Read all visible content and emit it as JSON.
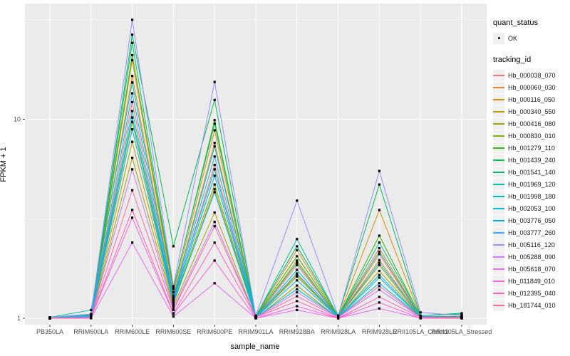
{
  "legend": {
    "quant_status_title": "quant_status",
    "ok_label": "OK",
    "tracking_title": "tracking_id"
  },
  "chart_data": {
    "type": "line",
    "title": "",
    "xlabel": "sample_name",
    "ylabel": "FPKM + 1",
    "y_scale": "log10",
    "ylim": [
      0.97,
      33
    ],
    "y_ticks": [
      1,
      10
    ],
    "y_tick_labels": [
      "1",
      "10"
    ],
    "y_minor_ticks": [
      3.1623,
      31.623
    ],
    "grid": "on",
    "legend_position": "right",
    "point_label": "OK",
    "x_categories": [
      "PB350LA",
      "RRIM600LA",
      "RRIM600LE",
      "RRIM600SE",
      "RRIM600PE",
      "RRIM901LA",
      "RRIM928BA",
      "RRIM928LA",
      "RRIM928LE",
      "RRII105LA_Control",
      "RRII105LA_Stressed"
    ],
    "series": [
      {
        "name": "Hb_000038_070",
        "color": "#F8766D",
        "values": [
          1.0,
          1.02,
          12.2,
          1.22,
          5.9,
          1.01,
          1.85,
          1.01,
          2.1,
          1.01,
          1.01
        ]
      },
      {
        "name": "Hb_000060_030",
        "color": "#EA8331",
        "values": [
          1.0,
          1.03,
          16.5,
          1.3,
          7.6,
          1.02,
          2.2,
          1.02,
          2.25,
          1.02,
          1.01
        ]
      },
      {
        "name": "Hb_000116_050",
        "color": "#D89000",
        "values": [
          1.0,
          1.02,
          19.8,
          1.35,
          8.8,
          1.01,
          1.95,
          1.01,
          3.5,
          1.02,
          1.02
        ]
      },
      {
        "name": "Hb_000340_550",
        "color": "#C09B00",
        "values": [
          1.0,
          1.01,
          7.7,
          1.18,
          4.45,
          1.01,
          1.65,
          1.01,
          1.96,
          1.01,
          1.01
        ]
      },
      {
        "name": "Hb_000416_080",
        "color": "#A3A500",
        "values": [
          1.0,
          1.01,
          6.4,
          1.15,
          3.4,
          1.0,
          1.46,
          1.0,
          1.73,
          1.01,
          1.0
        ]
      },
      {
        "name": "Hb_000830_010",
        "color": "#7CAE00",
        "values": [
          1.0,
          1.02,
          9.7,
          1.2,
          4.7,
          1.01,
          1.62,
          1.01,
          1.85,
          1.01,
          1.01
        ]
      },
      {
        "name": "Hb_001279_110",
        "color": "#39B600",
        "values": [
          1.0,
          1.04,
          21.0,
          1.4,
          9.9,
          1.02,
          2.05,
          1.02,
          2.6,
          1.02,
          1.02
        ]
      },
      {
        "name": "Hb_001439_240",
        "color": "#00BB4E",
        "values": [
          1.01,
          1.05,
          26.6,
          2.3,
          12.5,
          1.03,
          2.3,
          1.03,
          4.7,
          1.03,
          1.06
        ]
      },
      {
        "name": "Hb_001541_140",
        "color": "#00BF7D",
        "values": [
          1.0,
          1.04,
          24.2,
          1.42,
          9.5,
          1.02,
          1.9,
          1.02,
          2.16,
          1.02,
          1.02
        ]
      },
      {
        "name": "Hb_001969_120",
        "color": "#00C1A3",
        "values": [
          1.01,
          1.1,
          15.3,
          1.28,
          7.3,
          1.02,
          2.5,
          1.02,
          2.4,
          1.03,
          1.05
        ]
      },
      {
        "name": "Hb_001998_180",
        "color": "#00BFC4",
        "values": [
          1.0,
          1.03,
          11.0,
          1.25,
          5.6,
          1.01,
          1.75,
          1.01,
          1.6,
          1.01,
          1.01
        ]
      },
      {
        "name": "Hb_002053_100",
        "color": "#00BAE0",
        "values": [
          1.0,
          1.02,
          8.9,
          1.2,
          4.3,
          1.01,
          1.4,
          1.01,
          1.5,
          1.01,
          1.01
        ]
      },
      {
        "name": "Hb_003776_050",
        "color": "#00B0F6",
        "values": [
          1.0,
          1.02,
          10.2,
          1.22,
          5.2,
          1.01,
          1.55,
          1.01,
          1.65,
          1.01,
          1.01
        ]
      },
      {
        "name": "Hb_003777_260",
        "color": "#35A2FF",
        "values": [
          1.0,
          1.03,
          13.5,
          1.26,
          6.5,
          1.01,
          1.68,
          1.01,
          1.9,
          1.02,
          1.01
        ]
      },
      {
        "name": "Hb_005116_120",
        "color": "#9590FF",
        "values": [
          1.01,
          1.05,
          31.6,
          1.45,
          15.4,
          1.03,
          3.9,
          1.03,
          5.5,
          1.07,
          1.03
        ]
      },
      {
        "name": "Hb_005288_090",
        "color": "#C77CFF",
        "values": [
          1.0,
          1.01,
          5.6,
          1.12,
          3.05,
          1.01,
          1.35,
          1.01,
          1.39,
          1.01,
          1.01
        ]
      },
      {
        "name": "Hb_005618_070",
        "color": "#E76BF3",
        "values": [
          1.0,
          1.0,
          2.4,
          1.02,
          1.5,
          1.0,
          1.1,
          1.0,
          1.12,
          1.0,
          1.0
        ]
      },
      {
        "name": "Hb_011849_010",
        "color": "#FA62DB",
        "values": [
          1.0,
          1.01,
          3.2,
          1.05,
          1.95,
          1.0,
          1.15,
          1.0,
          1.2,
          1.0,
          1.0
        ]
      },
      {
        "name": "Hb_012395_040",
        "color": "#FF62BC",
        "values": [
          1.0,
          1.01,
          3.5,
          1.06,
          2.4,
          1.01,
          1.22,
          1.0,
          1.28,
          1.01,
          1.0
        ]
      },
      {
        "name": "Hb_181744_010",
        "color": "#FF6A98",
        "values": [
          1.0,
          1.01,
          4.4,
          1.1,
          2.9,
          1.01,
          1.29,
          1.01,
          1.45,
          1.01,
          1.01
        ]
      }
    ]
  }
}
